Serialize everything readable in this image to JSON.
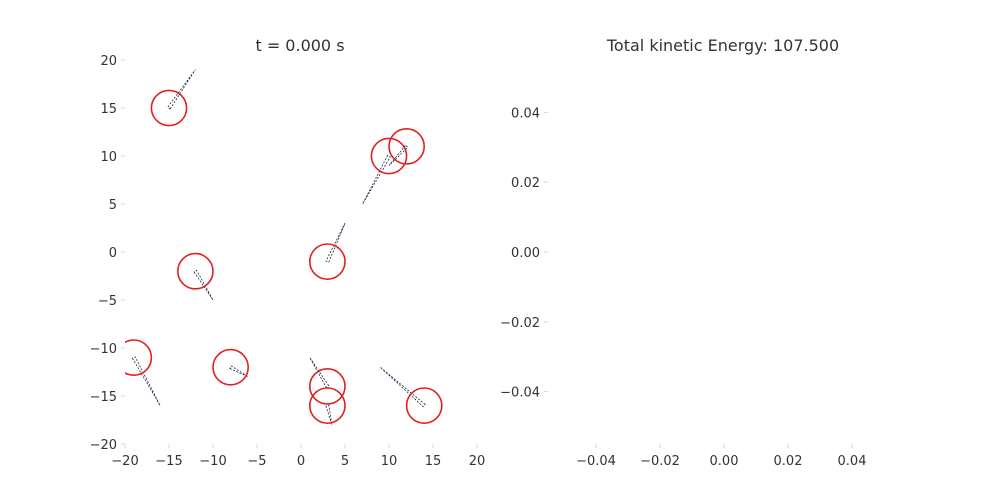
{
  "figure": {
    "left_title": "t =  0.000 s",
    "right_title": "Total kinetic Energy: 107.500"
  },
  "chart_data": [
    {
      "type": "scatter",
      "title": "t =  0.000 s",
      "xlabel": "",
      "ylabel": "",
      "xlim": [
        -20,
        20
      ],
      "ylim": [
        -20,
        20
      ],
      "xticks": [
        -20,
        -15,
        -10,
        -5,
        0,
        5,
        10,
        15,
        20
      ],
      "yticks": [
        -20,
        -15,
        -10,
        -5,
        0,
        5,
        10,
        15,
        20
      ],
      "xtick_labels": [
        "−20",
        "−15",
        "−10",
        "−5",
        "0",
        "5",
        "10",
        "15",
        "20"
      ],
      "ytick_labels": [
        "−20",
        "−15",
        "−10",
        "−5",
        "0",
        "5",
        "10",
        "15",
        "20"
      ],
      "grid": false,
      "marker_color": "#e02020",
      "arrow_color": "#1a2a4a",
      "particle_radius": 2,
      "particles": [
        {
          "x": -15,
          "y": 15,
          "vx": 3,
          "vy": 4
        },
        {
          "x": 10,
          "y": 10,
          "vx": -3,
          "vy": -5
        },
        {
          "x": 12,
          "y": 11,
          "vx": -2,
          "vy": -2
        },
        {
          "x": 3,
          "y": -1,
          "vx": 2,
          "vy": 4
        },
        {
          "x": -12,
          "y": -2,
          "vx": 2,
          "vy": -3
        },
        {
          "x": -19,
          "y": -11,
          "vx": 3,
          "vy": -5
        },
        {
          "x": -8,
          "y": -12,
          "vx": 2,
          "vy": -1
        },
        {
          "x": 3,
          "y": -14,
          "vx": -2,
          "vy": 3
        },
        {
          "x": 3,
          "y": -16,
          "vx": 0.5,
          "vy": -2
        },
        {
          "x": 14,
          "y": -16,
          "vx": -5,
          "vy": 4
        }
      ]
    },
    {
      "type": "line",
      "title": "Total kinetic Energy: 107.500",
      "xlabel": "",
      "ylabel": "",
      "xlim": [
        -0.055,
        0.055
      ],
      "ylim": [
        -0.055,
        0.055
      ],
      "xticks": [
        -0.04,
        -0.02,
        0.0,
        0.02,
        0.04
      ],
      "yticks": [
        -0.04,
        -0.02,
        0.0,
        0.02,
        0.04
      ],
      "xtick_labels": [
        "−0.04",
        "−0.02",
        "0.00",
        "0.02",
        "0.04"
      ],
      "ytick_labels": [
        "−0.04",
        "−0.02",
        "0.00",
        "0.02",
        "0.04"
      ],
      "grid": false,
      "series": []
    }
  ]
}
